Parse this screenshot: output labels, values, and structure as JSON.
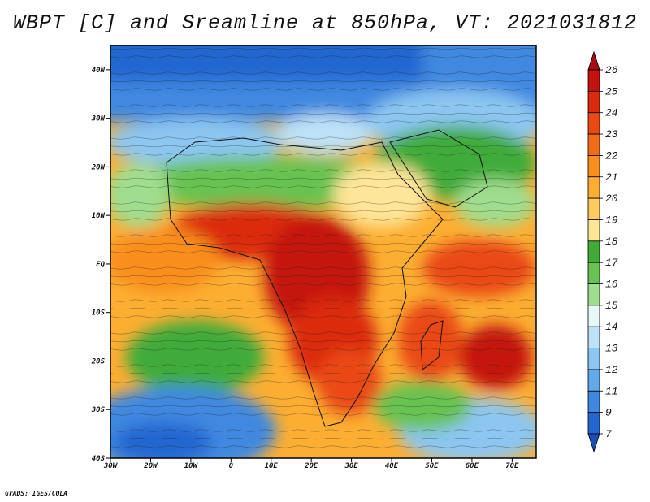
{
  "title": "WBPT [C] and Sreamline at 850hPa, VT: 2021031812",
  "credit": "GrADS: IGES/COLA",
  "map": {
    "lat_labels": [
      "40N",
      "30N",
      "20N",
      "10N",
      "EQ",
      "10S",
      "20S",
      "30S",
      "40S"
    ],
    "lon_labels": [
      "30W",
      "20W",
      "10W",
      "0",
      "10E",
      "20E",
      "30E",
      "40E",
      "50E",
      "60E",
      "70E"
    ],
    "lat_range": [
      -40,
      45
    ],
    "lon_range": [
      -30,
      76
    ]
  },
  "colorbar": {
    "labels": [
      "26",
      "25",
      "24",
      "23",
      "22",
      "21",
      "20",
      "19",
      "18",
      "17",
      "16",
      "15",
      "14",
      "13",
      "12",
      "11",
      "9",
      "7"
    ],
    "colors": [
      "#a50f15",
      "#c4120f",
      "#dc2a0d",
      "#ea4a12",
      "#f26b18",
      "#f98e1e",
      "#fcae32",
      "#fecb5e",
      "#fee598",
      "#41ab3a",
      "#67c251",
      "#a0dd8e",
      "#e8f7f7",
      "#bde1f6",
      "#8cc6f1",
      "#62a9ea",
      "#3f88e0",
      "#2466d0",
      "#1a4fb8"
    ]
  }
}
